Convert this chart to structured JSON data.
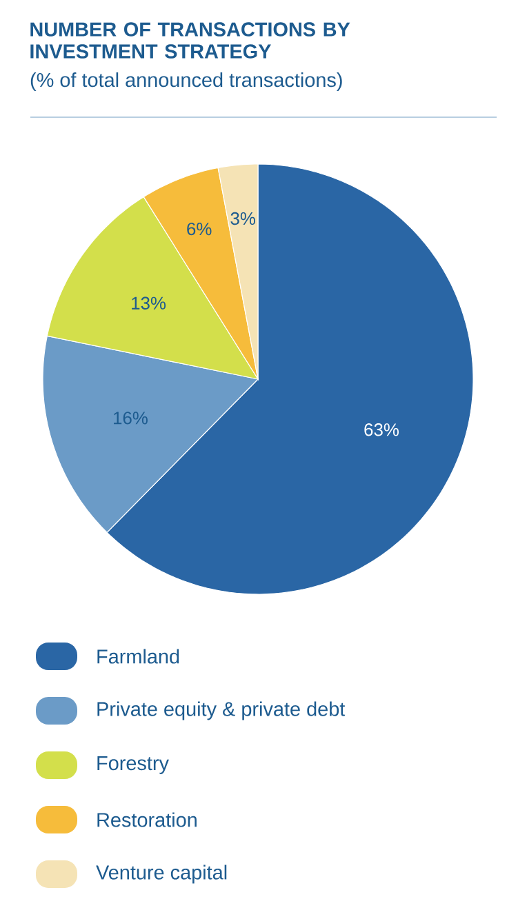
{
  "chart_data": {
    "type": "pie",
    "title": "NUMBER OF TRANSACTIONS BY INVESTMENT STRATEGY",
    "subtitle": "(% of total announced transactions)",
    "categories": [
      "Farmland",
      "Private equity & private debt",
      "Forestry",
      "Restoration",
      "Venture capital"
    ],
    "values": [
      63,
      16,
      13,
      6,
      3
    ],
    "value_labels": [
      "63%",
      "16%",
      "13%",
      "6%",
      "3%"
    ],
    "colors": [
      "#2a66a5",
      "#6b9bc7",
      "#d3df4b",
      "#f6bc3b",
      "#f5e3b5"
    ],
    "legend": "bottom"
  }
}
